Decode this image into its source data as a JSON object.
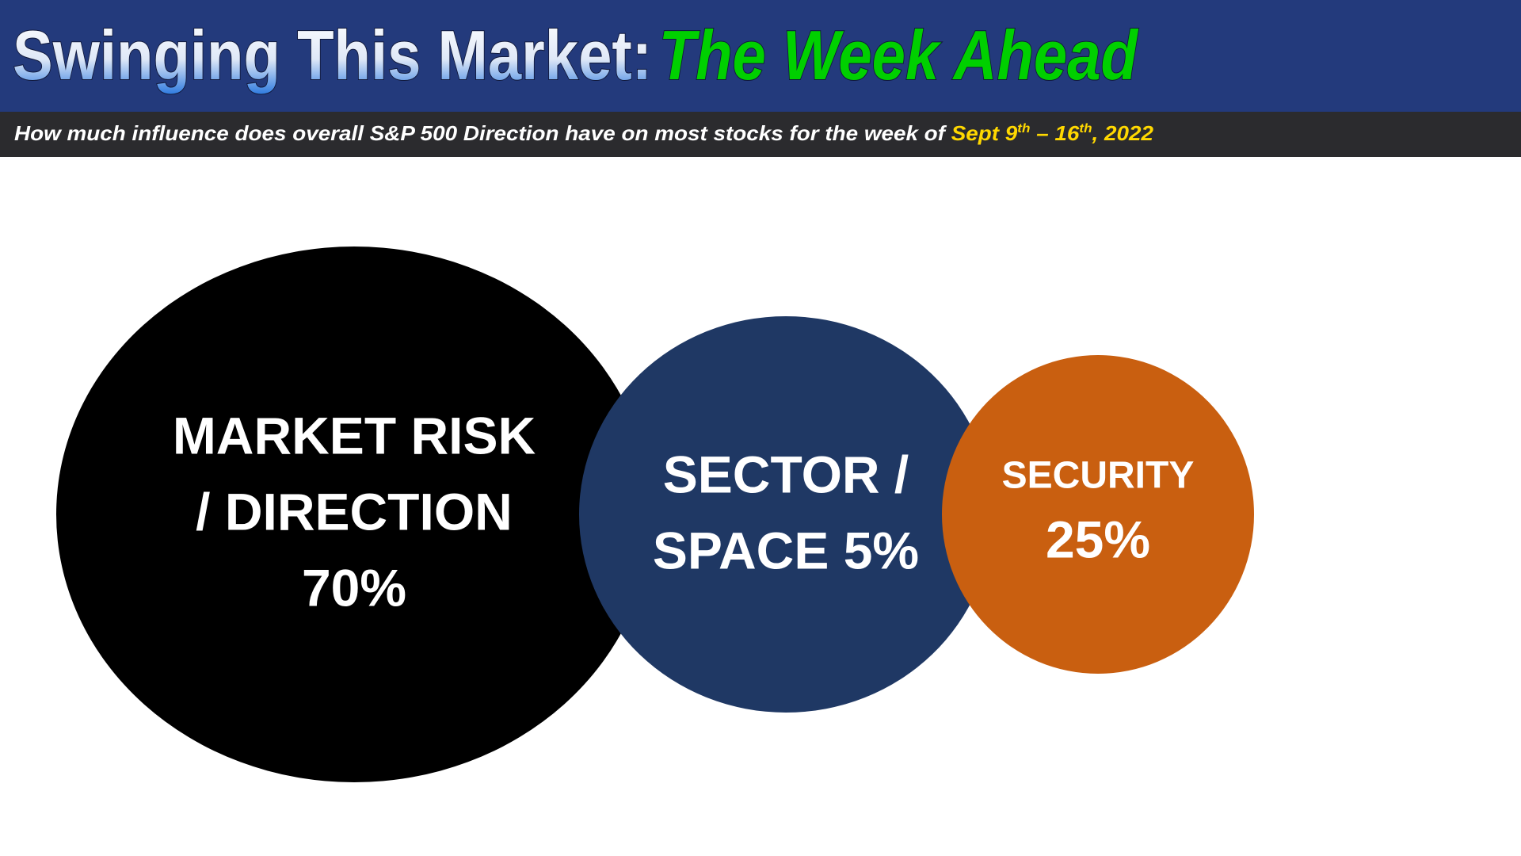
{
  "header": {
    "title": "Swinging This Market:",
    "title_highlight": "The Week Ahead"
  },
  "subtitle": {
    "text": "How much influence does overall S&P 500 Direction have on most stocks for the week of",
    "date": {
      "start": "Sept 9",
      "start_sup": "th",
      "end": " – 16",
      "end_sup": "th",
      "year": ", 2022"
    }
  },
  "nodes": [
    {
      "lines": [
        "MARKET RISK",
        "/ DIRECTION",
        "70%"
      ]
    },
    {
      "lines": [
        "SECTOR /",
        "SPACE 5%"
      ]
    },
    {
      "lines": [
        "SECURITY",
        "25%"
      ]
    }
  ]
}
